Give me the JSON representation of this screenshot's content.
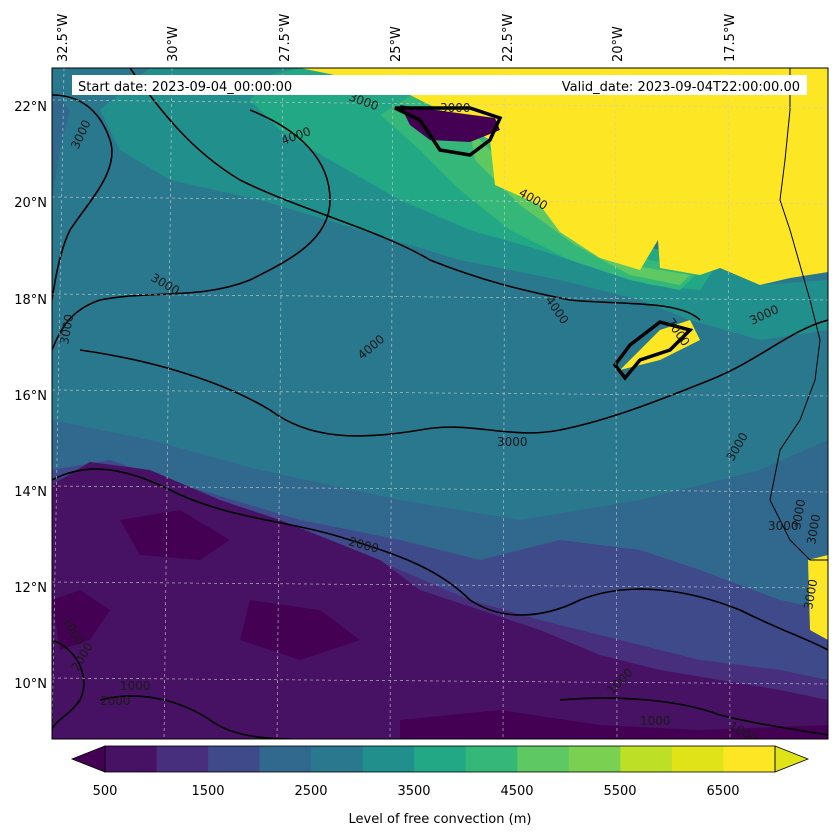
{
  "map": {
    "start_date_label": "Start date: 2023-09-04_00:00:00",
    "valid_date_label": "Valid_date: 2023-09-04T22:00:00.00",
    "lon_labels": [
      "32.5°W",
      "30°W",
      "27.5°W",
      "25°W",
      "22.5°W",
      "20°W",
      "17.5°W"
    ],
    "lat_labels": [
      "22°N",
      "20°N",
      "18°N",
      "16°N",
      "14°N",
      "12°N",
      "10°N"
    ],
    "contour_labels": [
      "3000",
      "3000",
      "4000",
      "3000",
      "4000",
      "4000",
      "3000",
      "3000",
      "3000",
      "3000",
      "4000",
      "3000",
      "3000",
      "2000",
      "1000",
      "1000",
      "2000",
      "2000",
      "1000",
      "1000",
      "1000",
      "7000",
      "3000",
      "3000",
      "3000"
    ],
    "colors": {
      "c500": "#440154",
      "c1000": "#471164",
      "c1500": "#472f7d",
      "c2000": "#3e4a89",
      "c2500": "#31688e",
      "c3000": "#2a788e",
      "c3500": "#21908d",
      "c4000": "#22a884",
      "c4500": "#35b779",
      "c5000": "#5ec962",
      "c5500": "#7ad151",
      "c6000": "#bddf26",
      "c6500": "#dfe318",
      "c7000": "#fde725"
    }
  },
  "colorbar": {
    "label": "Level of free convection (m)",
    "tick_labels": [
      "500",
      "1500",
      "2500",
      "3500",
      "4500",
      "5500",
      "6500"
    ],
    "colors": [
      "#440154",
      "#471164",
      "#472f7d",
      "#3e4a89",
      "#31688e",
      "#2a788e",
      "#21908d",
      "#22a884",
      "#35b779",
      "#5ec962",
      "#7ad151",
      "#bddf26",
      "#dfe318",
      "#fde725"
    ]
  }
}
